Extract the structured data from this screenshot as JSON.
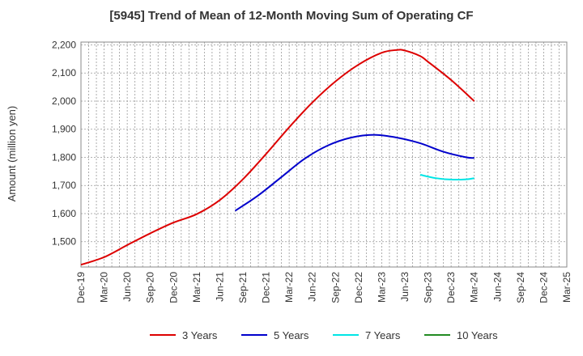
{
  "chart_data": {
    "type": "line",
    "title": "[5945]  Trend of Mean of 12-Month Moving Sum of Operating CF",
    "ylabel": "Amount (million yen)",
    "xlabel": "",
    "ylim": [
      1410,
      2210
    ],
    "y_ticks": [
      1500,
      1600,
      1700,
      1800,
      1900,
      2000,
      2100,
      2200
    ],
    "y_tick_labels": [
      "1,500",
      "1,600",
      "1,700",
      "1,800",
      "1,900",
      "2,000",
      "2,100",
      "2,200"
    ],
    "x_tick_labels": [
      "Dec-19",
      "Mar-20",
      "Jun-20",
      "Sep-20",
      "Dec-20",
      "Mar-21",
      "Jun-21",
      "Sep-21",
      "Dec-21",
      "Mar-22",
      "Jun-22",
      "Sep-22",
      "Dec-22",
      "Mar-23",
      "Jun-23",
      "Sep-23",
      "Dec-23",
      "Mar-24",
      "Jun-24",
      "Sep-24",
      "Dec-24",
      "Mar-25"
    ],
    "x_range_months": [
      0,
      63
    ],
    "grid": true,
    "legend_position": "bottom",
    "series": [
      {
        "name": "3 Years",
        "color": "#dd0000",
        "x": [
          0,
          3,
          6,
          9,
          12,
          15,
          18,
          21,
          24,
          27,
          30,
          33,
          36,
          39,
          41,
          42,
          44,
          45,
          48,
          51
        ],
        "y": [
          1418,
          1445,
          1488,
          1530,
          1568,
          1598,
          1648,
          1722,
          1812,
          1907,
          1995,
          2070,
          2130,
          2172,
          2182,
          2180,
          2160,
          2140,
          2075,
          2000
        ]
      },
      {
        "name": "5 Years",
        "color": "#0000cc",
        "x": [
          20,
          23,
          26,
          29,
          32,
          35,
          38,
          41,
          44,
          47,
          50,
          51
        ],
        "y": [
          1610,
          1665,
          1730,
          1795,
          1842,
          1870,
          1880,
          1870,
          1850,
          1820,
          1800,
          1798
        ]
      },
      {
        "name": "7 Years",
        "color": "#00e5e5",
        "x": [
          44,
          46,
          48,
          50,
          51
        ],
        "y": [
          1738,
          1726,
          1721,
          1722,
          1726
        ]
      },
      {
        "name": "10 Years",
        "color": "#228b22",
        "x": [],
        "y": []
      }
    ]
  }
}
